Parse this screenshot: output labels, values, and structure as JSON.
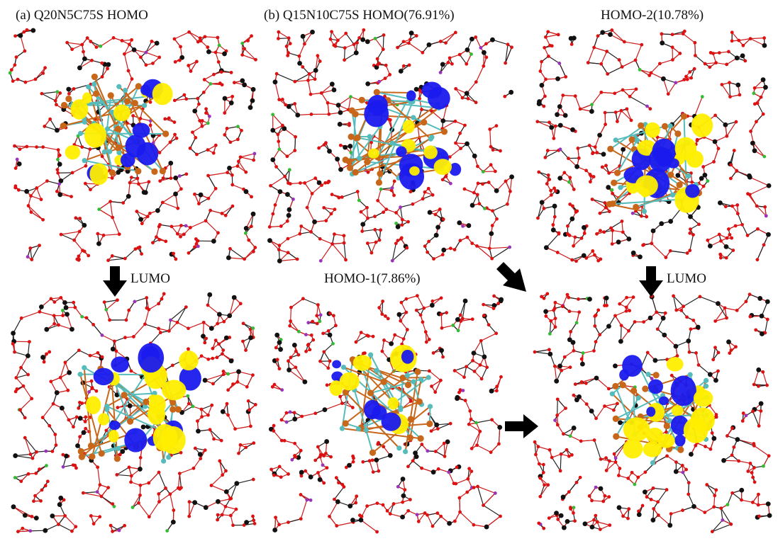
{
  "labels": {
    "panel_a": "(a)  Q20N5C75S HOMO",
    "panel_b": "(b) Q15N10C75S HOMO(76.91%)",
    "homo2": "HOMO-2(10.78%)",
    "homo1": "HOMO-1(7.86%)",
    "lumo_a": "LUMO",
    "lumo_b": "LUMO"
  },
  "colors": {
    "bond": "#cc1a1a",
    "oxygen": "#dd1111",
    "silicon": "#111111",
    "calcium": "#9933bb",
    "nitrogen": "#33bb33",
    "al_cluster": "#55bbbb",
    "cu_cluster": "#c8661a",
    "orbital_positive": "#1a1aee",
    "orbital_negative": "#ffee00",
    "arrow": "#000000"
  },
  "icons": [
    "arrow-down-icon",
    "arrow-diagonal-icon",
    "arrow-right-icon"
  ]
}
